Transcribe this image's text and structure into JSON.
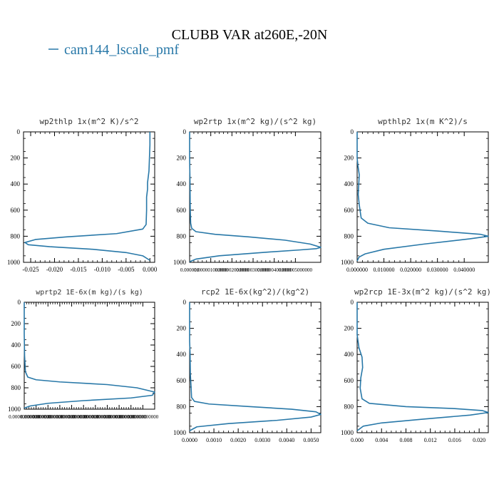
{
  "figure": {
    "title": "CLUBB VAR at260E,-20N",
    "legend_label": "cam144_lscale_pmf",
    "line_color": "#2878a8"
  },
  "chart_data": [
    {
      "type": "line",
      "title": "wp2thlp  1x(m^2 K)/s^2",
      "xlim": [
        -0.0265,
        0.001
      ],
      "ylim": [
        1000,
        0
      ],
      "x_ticks": [
        -0.025,
        -0.02,
        -0.015,
        -0.01,
        -0.005,
        0
      ],
      "x_tick_labels": [
        "-0.025",
        "-0.020",
        "-0.015",
        "-0.010",
        "-0.005",
        "0.000"
      ],
      "y_ticks": [
        0,
        200,
        400,
        600,
        800,
        1000
      ],
      "y_tick_labels": [
        "0",
        "200",
        "400",
        "600",
        "800",
        "1000"
      ],
      "series": [
        {
          "x": [
            0.0,
            0.0,
            -0.0001,
            -0.0002,
            -0.0005,
            -0.0005,
            -0.0007,
            -0.0007,
            -0.0008,
            -0.0015,
            -0.007,
            -0.0175,
            -0.024,
            -0.0262,
            -0.0255,
            -0.021,
            -0.012,
            -0.005,
            -0.0015,
            0.0
          ],
          "y": [
            0,
            100,
            200,
            300,
            390,
            440,
            500,
            600,
            710,
            745,
            780,
            805,
            825,
            848,
            865,
            880,
            900,
            925,
            950,
            985
          ]
        }
      ]
    },
    {
      "type": "line",
      "title": "wp2rtp  1x(m^2 kg)/(s^2 kg)",
      "xlim": [
        0,
        6.2e-06
      ],
      "ylim": [
        1000,
        0
      ],
      "x_ticks": [
        0,
        1e-06,
        2e-06,
        3e-06,
        4e-06,
        5e-06
      ],
      "x_tick_labels": [
        "0.000000",
        "0.000001000000",
        "0.000002000000",
        "0.000003000000",
        "0.000004000000",
        "0.000005000000"
      ],
      "y_ticks": [
        0,
        200,
        400,
        600,
        800,
        1000
      ],
      "y_tick_labels": [
        "0",
        "200",
        "400",
        "600",
        "800",
        "1000"
      ],
      "series": [
        {
          "x": [
            0,
            0,
            2e-08,
            3e-08,
            5e-08,
            1e-07,
            3e-07,
            1.2e-06,
            2.8e-06,
            4.5e-06,
            5.7e-06,
            6.2e-06,
            6e-06,
            5.2e-06,
            3.4e-06,
            1.4e-06,
            3e-07,
            0.0
          ],
          "y": [
            0,
            200,
            400,
            600,
            700,
            740,
            765,
            785,
            805,
            830,
            860,
            885,
            895,
            905,
            925,
            950,
            975,
            995
          ]
        }
      ]
    },
    {
      "type": "line",
      "title": "wpthlp2  1x(m K^2)/s",
      "xlim": [
        0,
        0.049
      ],
      "ylim": [
        1000,
        0
      ],
      "x_ticks": [
        0,
        0.01,
        0.02,
        0.03,
        0.04
      ],
      "x_tick_labels": [
        "0.000000",
        "0.010000",
        "0.020000",
        "0.030000",
        "0.040000"
      ],
      "y_ticks": [
        0,
        200,
        400,
        600,
        800,
        1000
      ],
      "y_tick_labels": [
        "0",
        "200",
        "400",
        "600",
        "800",
        "1000"
      ],
      "series": [
        {
          "x": [
            0,
            0,
            0.0003,
            0.0008,
            0.0006,
            0.0004,
            0.0008,
            0.0015,
            0.004,
            0.012,
            0.03,
            0.046,
            0.049,
            0.042,
            0.025,
            0.01,
            0.003,
            0.0007,
            0
          ],
          "y": [
            0,
            200,
            260,
            330,
            400,
            480,
            560,
            660,
            700,
            735,
            760,
            785,
            800,
            820,
            860,
            900,
            935,
            960,
            990
          ]
        }
      ]
    },
    {
      "type": "line",
      "title": "wprtp2  1E-6x(m kg)/(s kg)",
      "xlim": [
        0,
        1.1e-06
      ],
      "ylim": [
        1000,
        0
      ],
      "x_ticks": [
        0,
        1e-07,
        2e-07,
        3e-07,
        4e-07,
        5e-07,
        6e-07,
        7e-07,
        8e-07,
        9e-07,
        1e-06
      ],
      "x_tick_labels": [
        "0.00000000000",
        "0.00000000000",
        "0.00000000000",
        "0.00000000000",
        "0.00000000000",
        "0.00000000000",
        "0.00000000000",
        "0.00000000000",
        "0.00000000000",
        "0.00000000000",
        "0.00000000000"
      ],
      "y_ticks": [
        0,
        200,
        400,
        600,
        800,
        1000
      ],
      "y_tick_labels": [
        "0",
        "200",
        "400",
        "600",
        "800",
        "1000"
      ],
      "series": [
        {
          "x": [
            0,
            0,
            3e-09,
            1e-08,
            3e-08,
            1e-07,
            3e-07,
            7e-07,
            9.5e-07,
            1.1e-06,
            1.08e-06,
            9e-07,
            5e-07,
            2e-07,
            5e-08,
            0
          ],
          "y": [
            0,
            300,
            500,
            650,
            700,
            725,
            745,
            770,
            800,
            840,
            870,
            895,
            920,
            945,
            970,
            990
          ]
        }
      ]
    },
    {
      "type": "line",
      "title": "rcp2  1E-6x(kg^2)/(kg^2)",
      "xlim": [
        0,
        0.0054
      ],
      "ylim": [
        1000,
        0
      ],
      "x_ticks": [
        0,
        0.001,
        0.002,
        0.003,
        0.004,
        0.005
      ],
      "x_tick_labels": [
        "0.0000",
        "0.0010",
        "0.0020",
        "0.0030",
        "0.0040",
        "0.0050"
      ],
      "y_ticks": [
        0,
        200,
        400,
        600,
        800,
        1000
      ],
      "y_tick_labels": [
        "0",
        "200",
        "400",
        "600",
        "800",
        "1000"
      ],
      "series": [
        {
          "x": [
            0,
            0,
            2e-05,
            3e-05,
            6e-05,
            8e-05,
            0.0002,
            0.0008,
            0.0025,
            0.0042,
            0.0052,
            0.0054,
            0.005,
            0.0036,
            0.0016,
            0.0003,
            0
          ],
          "y": [
            0,
            300,
            400,
            550,
            650,
            730,
            760,
            780,
            800,
            820,
            840,
            860,
            880,
            905,
            930,
            955,
            985
          ]
        }
      ]
    },
    {
      "type": "line",
      "title": "wp2rcp  1E-3x(m^2 kg)/(s^2 kg)",
      "xlim": [
        0,
        0.0215
      ],
      "ylim": [
        1000,
        0
      ],
      "x_ticks": [
        0,
        0.004,
        0.008,
        0.012,
        0.016,
        0.02
      ],
      "x_tick_labels": [
        "0.000",
        "0.004",
        "0.008",
        "0.012",
        "0.016",
        "0.020"
      ],
      "y_ticks": [
        0,
        200,
        400,
        600,
        800,
        1000
      ],
      "y_tick_labels": [
        "0",
        "200",
        "400",
        "600",
        "800",
        "1000"
      ],
      "series": [
        {
          "x": [
            0,
            0,
            0.0003,
            0.0008,
            0.0009,
            0.0006,
            0.0005,
            0.0008,
            0.002,
            0.008,
            0.016,
            0.0205,
            0.0215,
            0.0185,
            0.011,
            0.004,
            0.001,
            0
          ],
          "y": [
            0,
            250,
            350,
            420,
            500,
            580,
            660,
            740,
            775,
            800,
            815,
            830,
            845,
            865,
            895,
            925,
            950,
            985
          ]
        }
      ]
    }
  ]
}
